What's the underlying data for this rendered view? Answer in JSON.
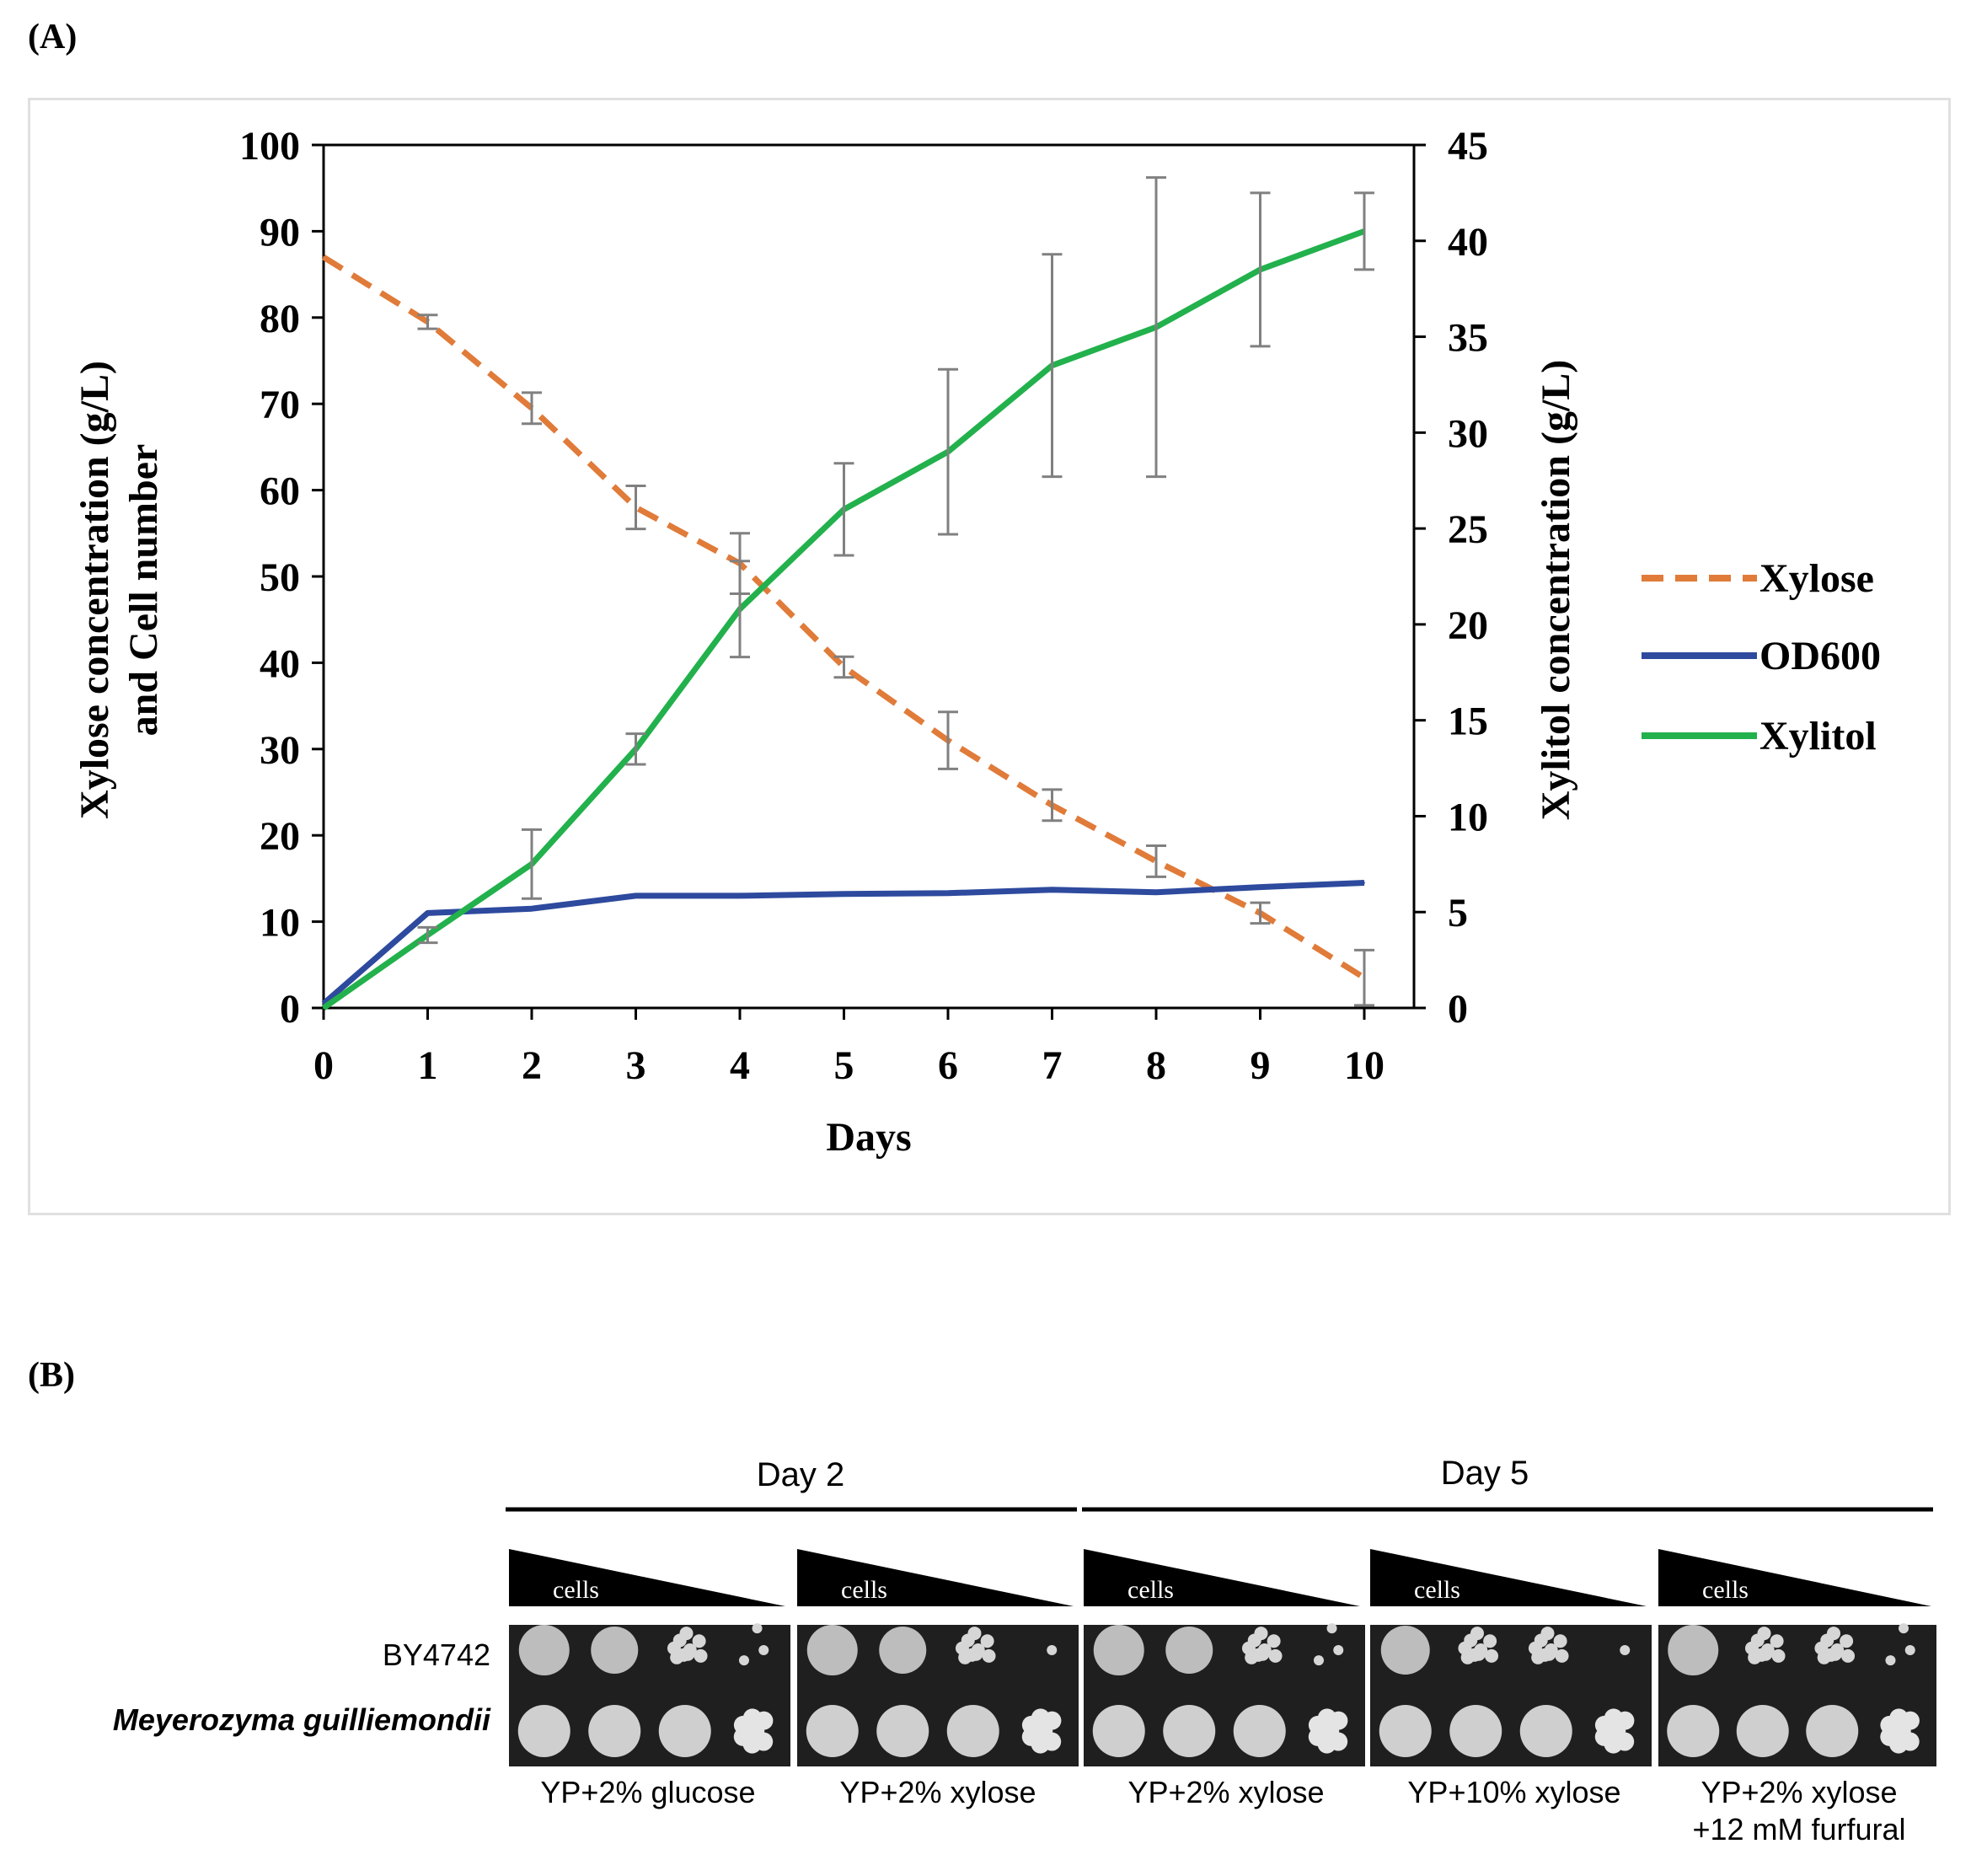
{
  "panel_a_label": "(A)",
  "panel_b_label": "(B)",
  "chart_data": {
    "type": "line",
    "x": [
      0,
      1,
      2,
      3,
      4,
      5,
      6,
      7,
      8,
      9,
      10
    ],
    "xlabel": "Days",
    "ylabel_left": [
      "Xylose concentration (g/L)",
      "and Cell number"
    ],
    "ylabel_right": "Xylitol concentration (g/L)",
    "xlim": [
      0,
      10.5
    ],
    "ylim_left": [
      0,
      100
    ],
    "ylim_right": [
      0,
      45
    ],
    "xticks": [
      "0",
      "1",
      "2",
      "3",
      "4",
      "5",
      "6",
      "7",
      "8",
      "9",
      "10"
    ],
    "yticks_left": [
      "0",
      "10",
      "20",
      "30",
      "40",
      "50",
      "60",
      "70",
      "80",
      "90",
      "100"
    ],
    "yticks_right": [
      "0",
      "5",
      "10",
      "15",
      "20",
      "25",
      "30",
      "35",
      "40",
      "45"
    ],
    "series": [
      {
        "name": "Xylose",
        "axis": "left",
        "color": "#e07b39",
        "dash": true,
        "values": [
          87,
          79.5,
          69.5,
          58,
          51.5,
          39.5,
          31,
          23.5,
          17,
          11,
          3.5
        ],
        "errors": [
          0,
          0.8,
          1.8,
          2.5,
          3.5,
          1.2,
          3.3,
          1.8,
          1.8,
          1.2,
          3.2
        ]
      },
      {
        "name": "OD600",
        "axis": "left",
        "color": "#2e4a9e",
        "dash": false,
        "values": [
          0.5,
          11,
          11.5,
          13,
          13,
          13.2,
          13.3,
          13.7,
          13.4,
          14,
          14.5
        ],
        "errors": []
      },
      {
        "name": "Xylitol",
        "axis": "right",
        "color": "#22b14c",
        "dash": false,
        "values": [
          0,
          3.8,
          7.5,
          13.5,
          20.8,
          26,
          29,
          33.5,
          35.5,
          38.5,
          40.5
        ],
        "errors": [
          0,
          0.4,
          1.8,
          0.8,
          2.5,
          2.4,
          4.3,
          5.8,
          7.8,
          4.0,
          2.0
        ]
      }
    ],
    "legend": [
      "Xylose",
      "OD600",
      "Xylitol"
    ],
    "legend_position": "right"
  },
  "panel_b": {
    "day2": "Day 2",
    "day5": "Day 5",
    "cells_label": "cells",
    "strains": [
      "BY4742",
      "Meyerozyma guilliemondii"
    ],
    "conditions": [
      [
        "YP+2% glucose"
      ],
      [
        "YP+2% xylose"
      ],
      [
        "YP+2% xylose"
      ],
      [
        "YP+10% xylose"
      ],
      [
        "YP+2% xylose",
        "+12 mM furfural"
      ]
    ]
  }
}
